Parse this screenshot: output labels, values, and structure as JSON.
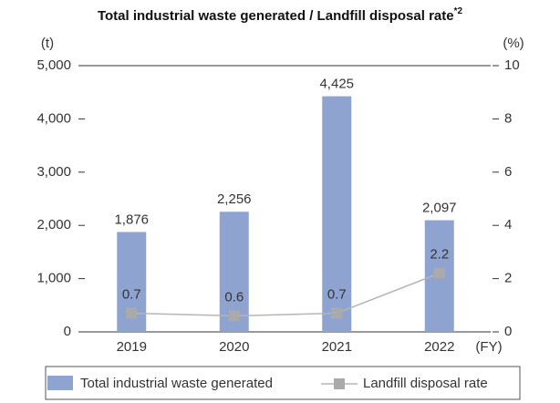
{
  "chart_data": {
    "type": "bar",
    "title": "Total industrial waste generated / Landfill disposal rate",
    "title_note": "*2",
    "y_unit": "(t)",
    "y2_unit": "(%)",
    "x_unit": "(FY)",
    "categories": [
      "2019",
      "2020",
      "2021",
      "2022"
    ],
    "series": [
      {
        "name": "Total industrial waste generated",
        "color": "#8fa3d0",
        "type": "bar",
        "values": [
          1876,
          2256,
          4425,
          2097
        ],
        "value_labels": [
          "1,876",
          "2,256",
          "4,425",
          "2,097"
        ]
      },
      {
        "name": "Landfill disposal rate",
        "color": "#b5b5b5",
        "type": "line",
        "axis": "y2",
        "values": [
          0.7,
          0.6,
          0.7,
          2.2
        ]
      }
    ],
    "ylim": [
      0,
      5000
    ],
    "yticks": [
      0,
      {
        "value": 1000,
        "label": "1,000"
      },
      {
        "value": 2000,
        "label": "2,000"
      },
      {
        "value": 3000,
        "label": "3,000"
      },
      {
        "value": 4000,
        "label": "4,000"
      },
      {
        "value": 5000,
        "label": "5,000"
      }
    ],
    "y2lim": [
      0,
      10
    ],
    "y2ticks": [
      0,
      2,
      4,
      6,
      8,
      10
    ],
    "legend": "bottom"
  }
}
